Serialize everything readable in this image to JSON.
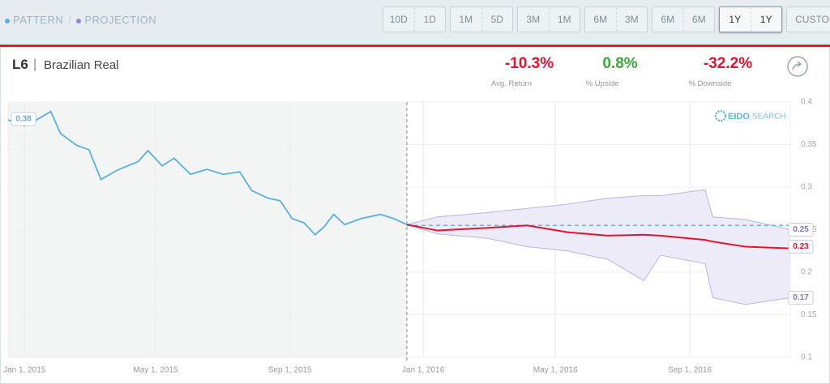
{
  "toolbar": {
    "legend": {
      "separator": "/"
    },
    "buttons": [
      [
        "10D",
        "1D"
      ],
      [
        "1M",
        "5D"
      ],
      [
        "3M",
        "1M"
      ],
      [
        "6M",
        "3M"
      ],
      [
        "6M",
        "6M"
      ],
      [
        "1Y",
        "1Y"
      ],
      [
        "CUSTOM"
      ]
    ],
    "selected": 5
  },
  "header": {
    "code": "L6",
    "separator": "|",
    "name": "Brazilian Real"
  },
  "stats": [
    {
      "value": "-10.3%",
      "label": "Avg. Return",
      "color": "#e8112d"
    },
    {
      "value": "0.8%",
      "label": "% Upside",
      "color": "#3aaa35"
    },
    {
      "value": "-32.2%",
      "label": "% Downside",
      "color": "#e8112d"
    }
  ],
  "logo": [
    "EIDO",
    "SEARCH"
  ],
  "chart_data": {
    "type": "line",
    "xlim": [
      "2014-12-17",
      "2016-12-02"
    ],
    "xticks": [
      {
        "value": "2015-01-01",
        "label": "Jan 1, 2015"
      },
      {
        "value": "2015-05-01",
        "label": "May 1, 2015"
      },
      {
        "value": "2015-09-01",
        "label": "Sep 1, 2015"
      },
      {
        "value": "2016-01-01",
        "label": "Jan 1, 2016"
      },
      {
        "value": "2016-05-01",
        "label": "May 1, 2016"
      },
      {
        "value": "2016-09-01",
        "label": "Sep 1, 2016"
      }
    ],
    "ylim": [
      0.1,
      0.4
    ],
    "yticks": [
      0.1,
      0.15,
      0.2,
      0.25,
      0.3,
      0.35,
      0.4
    ],
    "grid": true,
    "pattern": {
      "name": "PATTERN",
      "color": "#5aafdc",
      "x": [
        "2014-12-17",
        "2015-01-01",
        "2015-01-12",
        "2015-01-25",
        "2015-02-03",
        "2015-02-18",
        "2015-03-01",
        "2015-03-12",
        "2015-03-27",
        "2015-04-15",
        "2015-04-24",
        "2015-05-07",
        "2015-05-18",
        "2015-06-02",
        "2015-06-17",
        "2015-07-02",
        "2015-07-17",
        "2015-07-28",
        "2015-08-12",
        "2015-08-23",
        "2015-09-03",
        "2015-09-14",
        "2015-09-24",
        "2015-10-02",
        "2015-10-11",
        "2015-10-21",
        "2015-11-05",
        "2015-11-23",
        "2015-12-05",
        "2015-12-17"
      ],
      "values": [
        0.379,
        0.372,
        0.379,
        0.389,
        0.363,
        0.349,
        0.344,
        0.309,
        0.32,
        0.33,
        0.343,
        0.325,
        0.334,
        0.315,
        0.321,
        0.315,
        0.318,
        0.296,
        0.287,
        0.284,
        0.263,
        0.258,
        0.244,
        0.253,
        0.268,
        0.256,
        0.263,
        0.268,
        0.263,
        0.256
      ],
      "start_label": 0.38
    },
    "projection": {
      "name": "PROJECTION",
      "color": "#8c8cc8",
      "band_fill": "#ecebf7",
      "median_color": "#e8112d",
      "x": [
        "2015-12-17",
        "2016-01-14",
        "2016-02-28",
        "2016-04-05",
        "2016-05-12",
        "2016-06-18",
        "2016-07-21",
        "2016-08-05",
        "2016-09-15",
        "2016-09-22",
        "2016-10-22",
        "2016-12-02"
      ],
      "median": [
        0.256,
        0.249,
        0.252,
        0.255,
        0.247,
        0.243,
        0.244,
        0.243,
        0.238,
        0.236,
        0.23,
        0.228
      ],
      "upper": [
        0.256,
        0.265,
        0.27,
        0.275,
        0.28,
        0.287,
        0.29,
        0.29,
        0.297,
        0.265,
        0.262,
        0.25
      ],
      "lower": [
        0.256,
        0.245,
        0.24,
        0.23,
        0.225,
        0.215,
        0.19,
        0.22,
        0.21,
        0.17,
        0.162,
        0.17
      ],
      "end_labels": {
        "upper": 0.25,
        "median": 0.23,
        "lower": 0.17
      }
    },
    "current_value": 0.255,
    "current_color": "#5ab8d8"
  }
}
